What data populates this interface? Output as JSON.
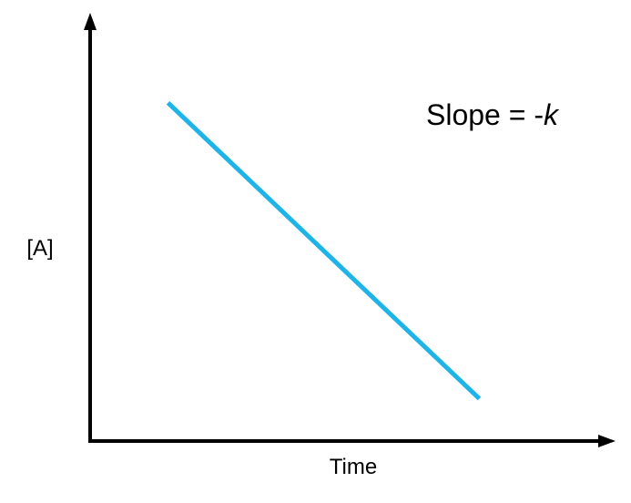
{
  "chart_data": {
    "type": "line",
    "title": "",
    "xlabel": "Time",
    "ylabel": "[A]",
    "xlim": [
      0,
      1
    ],
    "ylim": [
      0,
      1
    ],
    "grid": false,
    "series": [
      {
        "x": [
          0.15,
          0.75
        ],
        "y": [
          0.8,
          0.1
        ]
      }
    ],
    "annotation": {
      "prefix": "Slope = -",
      "symbol": "k"
    },
    "colors": {
      "line": "#1fb4e8",
      "axis": "#000000"
    }
  }
}
